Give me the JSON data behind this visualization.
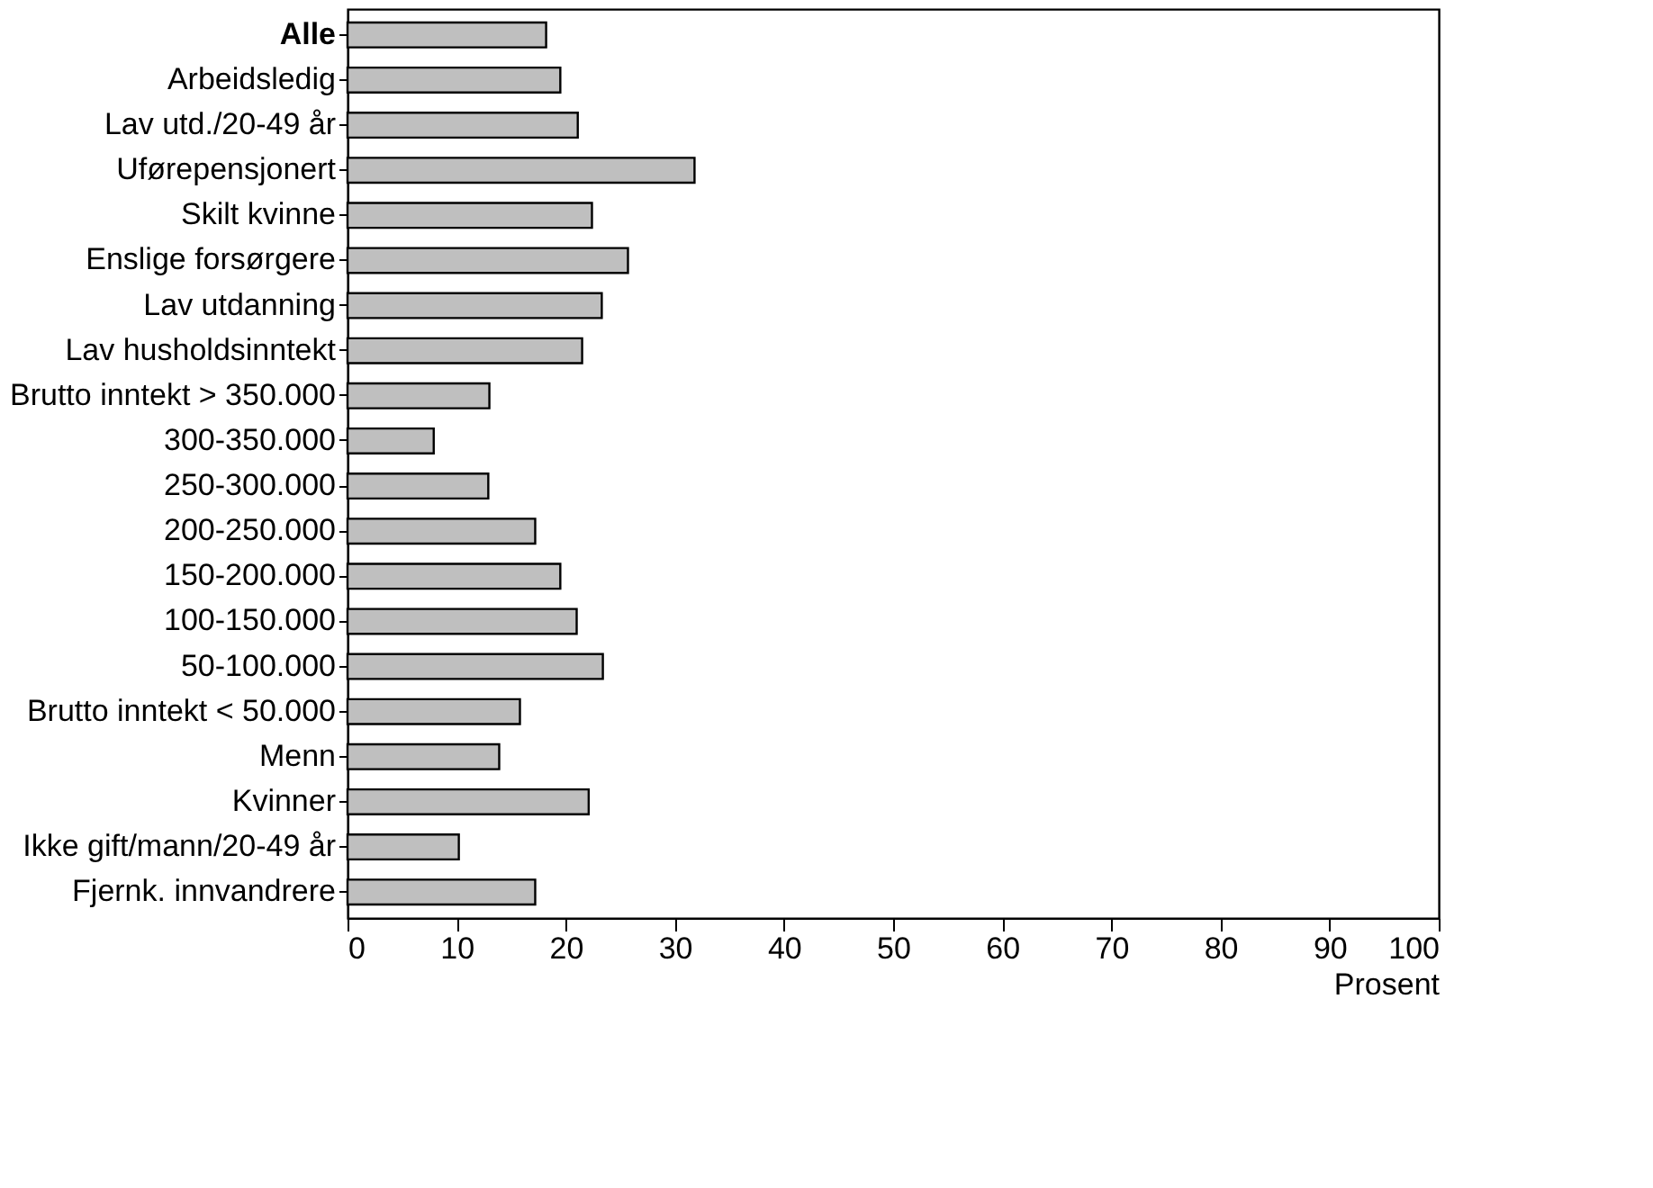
{
  "chart_data": {
    "type": "bar",
    "orientation": "horizontal",
    "xlabel": "Prosent",
    "categories": [
      "Alle",
      "Arbeidsledig",
      "Lav utd./20-49 år",
      "Uførepensjonert",
      "Skilt kvinne",
      "Enslige forsørgere",
      "Lav utdanning",
      "Lav husholdsinntekt",
      "Brutto inntekt > 350.000",
      "300-350.000",
      "250-300.000",
      "200-250.000",
      "150-200.000",
      "100-150.000",
      "50-100.000",
      "Brutto inntekt < 50.000",
      "Menn",
      "Kvinner",
      "Ikke gift/mann/20-49 år",
      "Fjernk. innvandrere"
    ],
    "values": [
      18.2,
      19.5,
      21.1,
      31.8,
      22.4,
      25.7,
      23.3,
      21.5,
      13.0,
      7.9,
      12.9,
      17.2,
      19.5,
      21.0,
      23.4,
      15.8,
      13.9,
      22.1,
      10.2,
      17.2
    ],
    "color": "#bfbfbf",
    "xlim": [
      0,
      100
    ],
    "xticks": [
      0,
      10,
      20,
      30,
      40,
      50,
      60,
      70,
      80,
      90,
      100
    ],
    "grid": false
  }
}
